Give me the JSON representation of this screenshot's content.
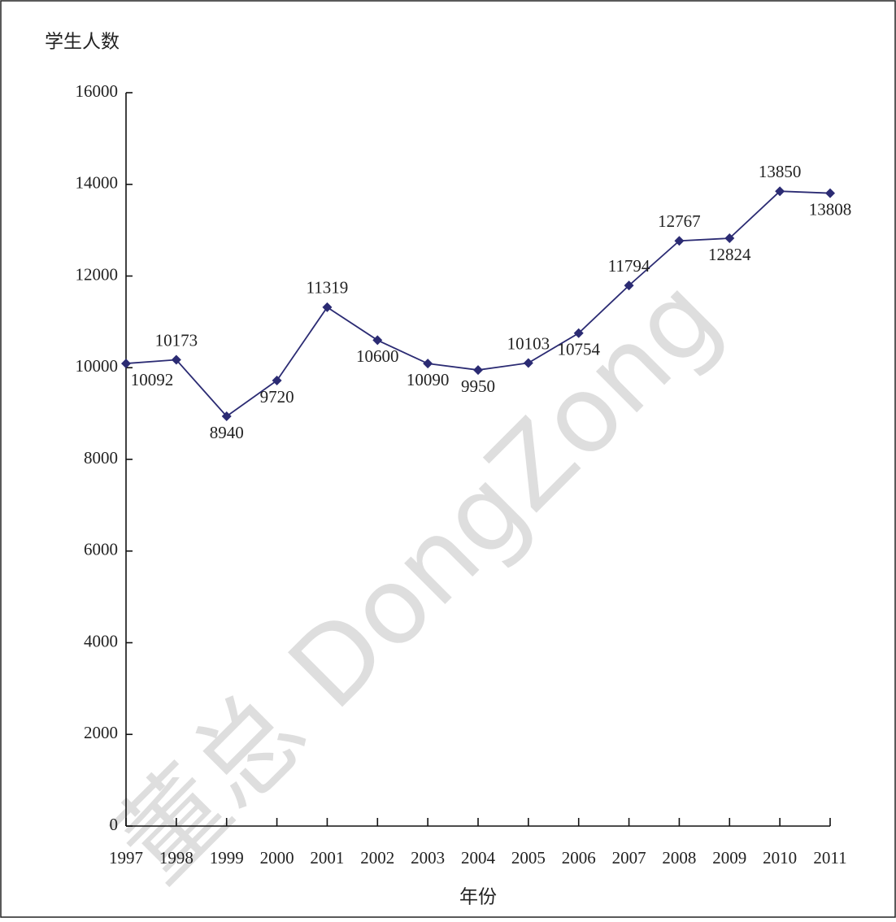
{
  "chart_data": {
    "type": "line",
    "y_label": "学生人数",
    "x_label": "年份",
    "watermark": "董总 DongZong",
    "categories": [
      "1997",
      "1998",
      "1999",
      "2000",
      "2001",
      "2002",
      "2003",
      "2004",
      "2005",
      "2006",
      "2007",
      "2008",
      "2009",
      "2010",
      "2011"
    ],
    "series": [
      {
        "color": "#2b2b73",
        "values": [
          10092,
          10173,
          8940,
          9720,
          11319,
          10600,
          10090,
          9950,
          10103,
          10754,
          11794,
          12767,
          12824,
          13850,
          13808
        ]
      }
    ],
    "ylim": [
      0,
      16000
    ],
    "yticks": [
      0,
      2000,
      4000,
      6000,
      8000,
      10000,
      12000,
      14000,
      16000
    ]
  }
}
